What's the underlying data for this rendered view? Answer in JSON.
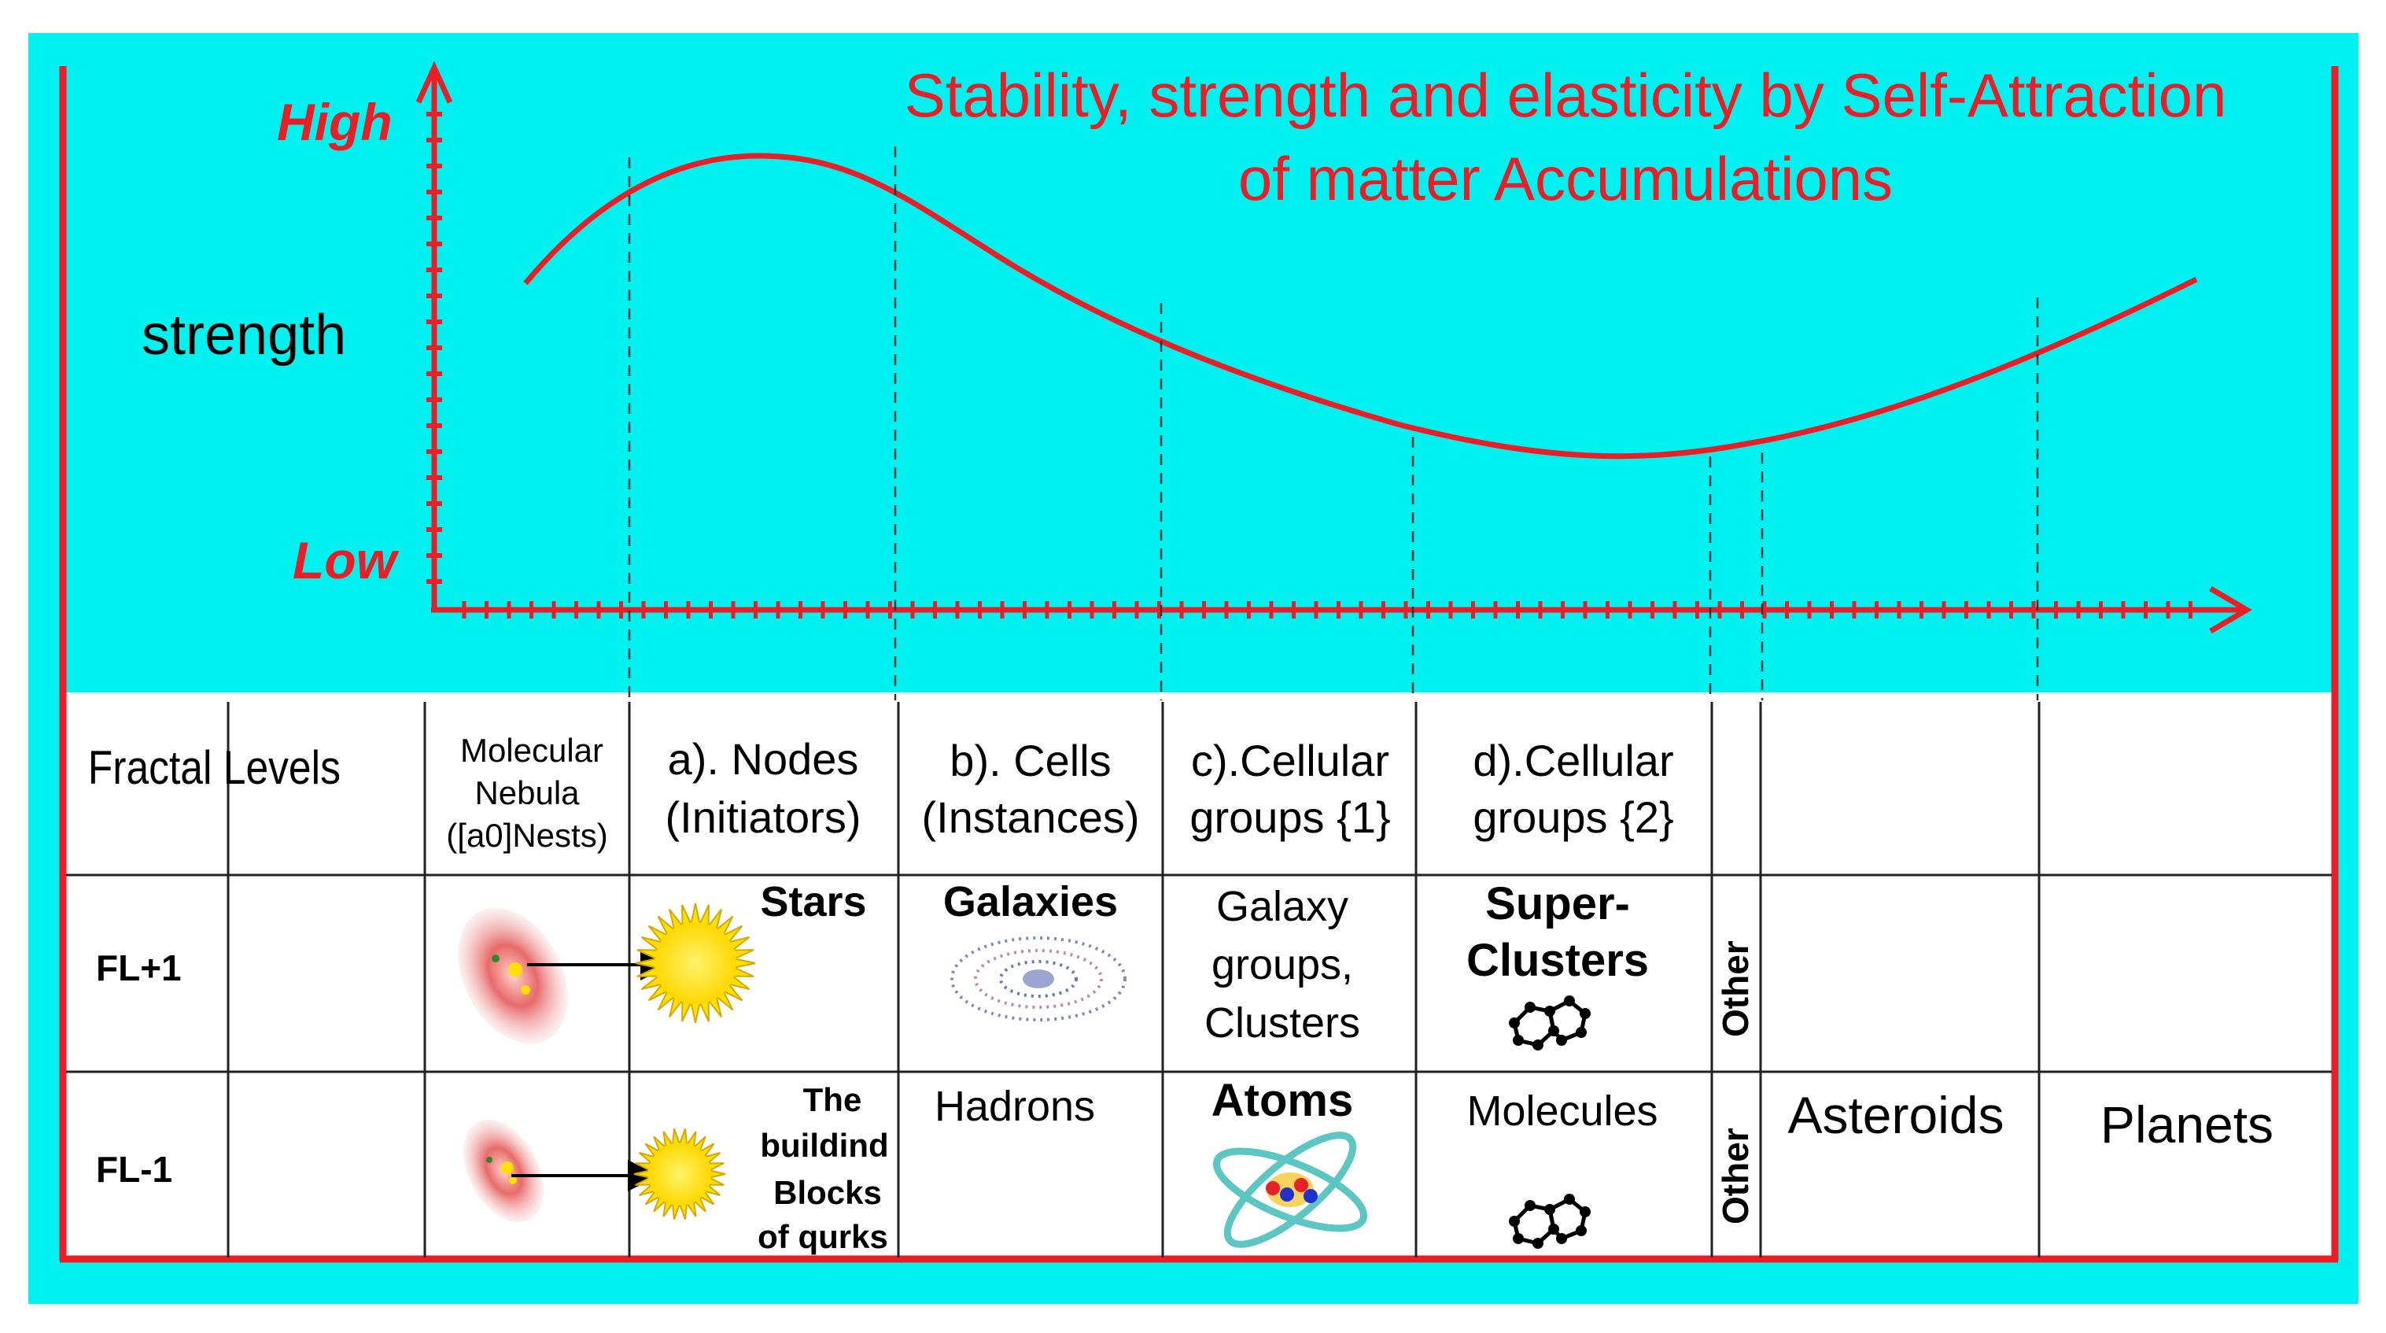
{
  "title": {
    "line1": "Stability, strength and elasticity by Self-Attraction",
    "line2": "of matter Accumulations"
  },
  "axis": {
    "high_label": "High",
    "low_label": "Low",
    "y_label": "strength"
  },
  "colors": {
    "background": "#00f2f0",
    "frame": "#ee1c24",
    "curve": "#ee1c24",
    "table_bg": "#ffffff",
    "star": "#ffe000",
    "nebula": "#e05a5a"
  },
  "table": {
    "row_header": "Fractal Levels",
    "headers": {
      "nebula_1": "Molecular",
      "nebula_2": "Nebula",
      "nebula_3": "([a0]Nests)",
      "nodes_1": "a). Nodes",
      "nodes_2": "(Initiators)",
      "cells_1": "b). Cells",
      "cells_2": "(Instances)",
      "cg1_1": "c).Cellular",
      "cg1_2": "groups {1}",
      "cg2_1": "d).Cellular",
      "cg2_2": "groups {2}"
    },
    "row_fl_plus": {
      "label": "FL+1",
      "stars": "Stars",
      "galaxies": "Galaxies",
      "groups_1": "Galaxy",
      "groups_2": "groups,",
      "groups_3": "Clusters",
      "super_1": "Super-",
      "super_2": "Clusters",
      "other": "Other"
    },
    "row_fl_minus": {
      "label": "FL-1",
      "blocks_1": "The",
      "blocks_2": "buildind",
      "blocks_3": "Blocks",
      "blocks_4": "of qurks",
      "hadrons": "Hadrons",
      "atoms": "Atoms",
      "molecules": "Molecules",
      "other": "Other",
      "asteroids": "Asteroids",
      "planets": "Planets"
    }
  }
}
